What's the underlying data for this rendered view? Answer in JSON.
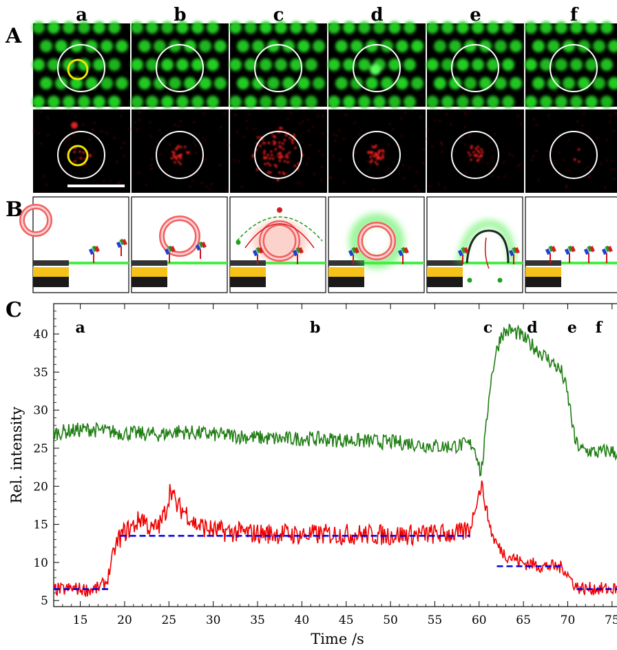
{
  "panels": {
    "A": "A",
    "B": "B",
    "C": "C"
  },
  "columns": [
    "a",
    "b",
    "c",
    "d",
    "e",
    "f"
  ],
  "colors": {
    "green_trace": "#1e7d12",
    "red_trace": "#f00000",
    "step_fit": "#0000e0",
    "circle": "#ffffff",
    "highlight_circle": "#f2e600",
    "bilayer_green": "#44ee44",
    "gold_layer": "#f5c21a",
    "substrate": "#1a1a1a"
  },
  "chart_data": {
    "type": "line",
    "xlabel": "Time /s",
    "ylabel": "Rel. intensity",
    "xlim": [
      12,
      76.5
    ],
    "ylim": [
      4.2,
      44
    ],
    "xticks": [
      15,
      20,
      25,
      30,
      35,
      40,
      45,
      50,
      55,
      60,
      65,
      70,
      75
    ],
    "yticks": [
      5,
      10,
      15,
      20,
      25,
      30,
      35,
      40
    ],
    "grid": false,
    "stage_labels": [
      {
        "text": "a",
        "x": 15
      },
      {
        "text": "b",
        "x": 41.5
      },
      {
        "text": "c",
        "x": 61
      },
      {
        "text": "d",
        "x": 66
      },
      {
        "text": "e",
        "x": 70.5
      },
      {
        "text": "f",
        "x": 73.5
      }
    ],
    "series": [
      {
        "color": "green",
        "x": [
          12,
          14,
          16,
          18,
          20,
          22,
          24,
          26,
          28,
          30,
          32,
          34,
          36,
          38,
          40,
          42,
          44,
          46,
          48,
          50,
          52,
          54,
          56,
          58,
          59.3,
          59.8,
          60.2,
          60.7,
          61.2,
          61.8,
          62.5,
          63.5,
          64.5,
          65.5,
          66.5,
          67.5,
          68.5,
          69.3,
          69.8,
          70.3,
          70.8,
          71.5,
          72.5,
          73.5,
          74.5,
          75.5,
          76.5
        ],
        "values": [
          27,
          27.3,
          27.5,
          27.2,
          27,
          26.9,
          26.8,
          27.2,
          27,
          26.8,
          26.7,
          26.5,
          26.3,
          26.2,
          26.3,
          26.2,
          26.1,
          26,
          25.9,
          25.8,
          25.7,
          25.4,
          25.2,
          25.4,
          25.5,
          24,
          21.5,
          26.5,
          33,
          37,
          40,
          40.5,
          40,
          39,
          38,
          37,
          36,
          35,
          33,
          30,
          26,
          24.8,
          24.6,
          24.4,
          24.7,
          24.4,
          24.3
        ]
      },
      {
        "color": "red",
        "x": [
          12,
          13,
          14,
          15,
          16,
          17,
          18,
          18.7,
          19.3,
          20,
          21,
          22,
          23,
          24,
          24.7,
          25.2,
          25.8,
          27,
          28,
          30,
          32,
          35,
          38,
          40,
          43,
          46,
          50,
          54,
          58,
          59,
          59.7,
          60.3,
          60.8,
          61.5,
          62.2,
          63,
          64,
          65,
          66,
          67,
          68,
          69,
          69.6,
          70.2,
          71,
          72,
          73,
          74,
          75,
          76.5
        ],
        "values": [
          6.5,
          6.4,
          6.6,
          6.5,
          6.4,
          6.6,
          7.5,
          11,
          13,
          14,
          14.8,
          16,
          14.2,
          15,
          17,
          20,
          17.5,
          16.5,
          15,
          14.2,
          14,
          13.8,
          13.8,
          13.6,
          13.7,
          13.7,
          13.6,
          13.7,
          13.8,
          14.5,
          18,
          20.2,
          17,
          13.5,
          12,
          11,
          10.5,
          9.9,
          9.8,
          9.5,
          9.5,
          9.4,
          9.2,
          8,
          6.8,
          6.5,
          6.6,
          6.5,
          6.5,
          6.6
        ]
      }
    ],
    "step_fits": [
      {
        "x": [
          12,
          18.5
        ],
        "value": 6.5
      },
      {
        "x": [
          19.5,
          59
        ],
        "value": 13.5
      },
      {
        "x": [
          62,
          69.5
        ],
        "value": 9.5
      },
      {
        "x": [
          71,
          76.5
        ],
        "value": 6.5
      }
    ]
  }
}
